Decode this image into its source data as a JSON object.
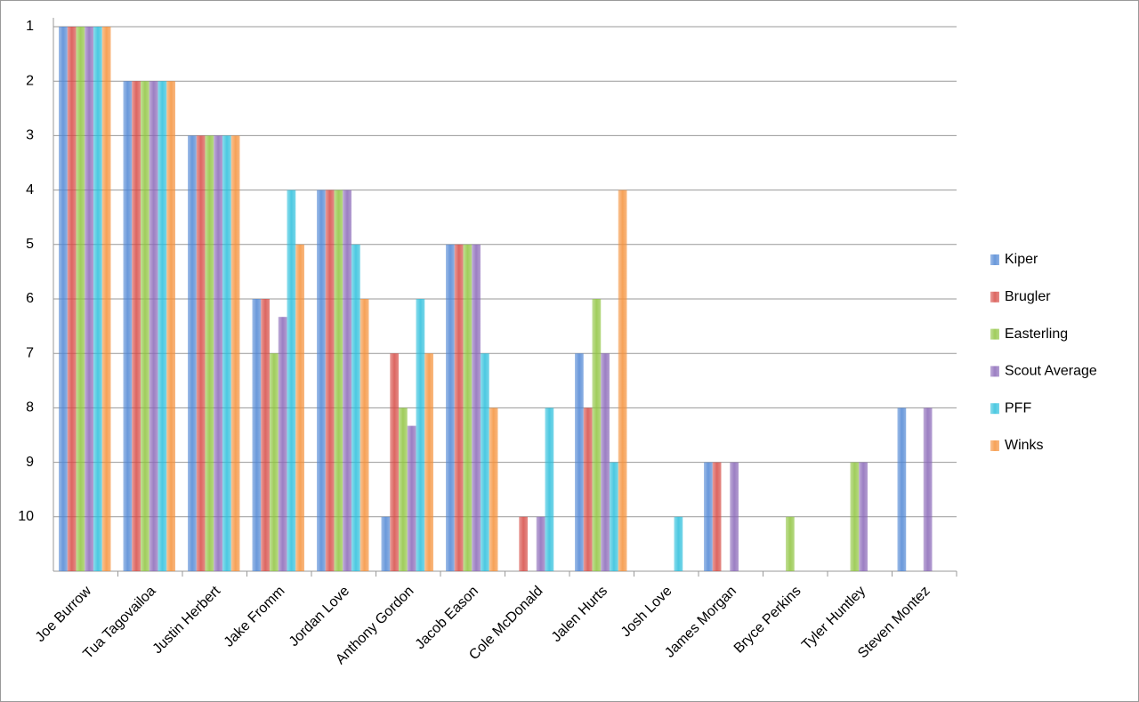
{
  "chart_data": {
    "type": "bar",
    "categories": [
      "Joe Burrow",
      "Tua Tagovailoa",
      "Justin Herbert",
      "Jake Fromm",
      "Jordan Love",
      "Anthony Gordon",
      "Jacob Eason",
      "Cole McDonald",
      "Jalen Hurts",
      "Josh Love",
      "James Morgan",
      "Bryce Perkins",
      "Tyler Huntley",
      "Steven Montez"
    ],
    "series": [
      {
        "name": "Kiper",
        "color": "#4f86d4",
        "values": [
          1,
          2,
          3,
          6,
          4,
          10,
          5,
          null,
          7,
          null,
          9,
          null,
          null,
          8
        ]
      },
      {
        "name": "Brugler",
        "color": "#d64b45",
        "values": [
          1,
          2,
          3,
          6,
          4,
          7,
          5,
          10,
          8,
          null,
          9,
          null,
          null,
          null
        ]
      },
      {
        "name": "Easterling",
        "color": "#8fc43f",
        "values": [
          1,
          2,
          3,
          7,
          4,
          8,
          5,
          null,
          6,
          null,
          null,
          10,
          9,
          null
        ]
      },
      {
        "name": "Scout Average",
        "color": "#8a68b8",
        "values": [
          1,
          2,
          3,
          6.33,
          4,
          8.33,
          5,
          10,
          7,
          null,
          9,
          null,
          9,
          8
        ]
      },
      {
        "name": "PFF",
        "color": "#2cbfdc",
        "values": [
          1,
          2,
          3,
          4,
          5,
          6,
          7,
          8,
          9,
          10,
          null,
          null,
          null,
          null
        ]
      },
      {
        "name": "Winks",
        "color": "#f5913a",
        "values": [
          1,
          2,
          3,
          5,
          6,
          7,
          8,
          null,
          4,
          null,
          null,
          null,
          null,
          null
        ]
      }
    ],
    "ylim": [
      1,
      11
    ],
    "y_reversed": true,
    "yticks": [
      1,
      2,
      3,
      4,
      5,
      6,
      7,
      8,
      9,
      10
    ],
    "grid": true,
    "legend": "right"
  }
}
